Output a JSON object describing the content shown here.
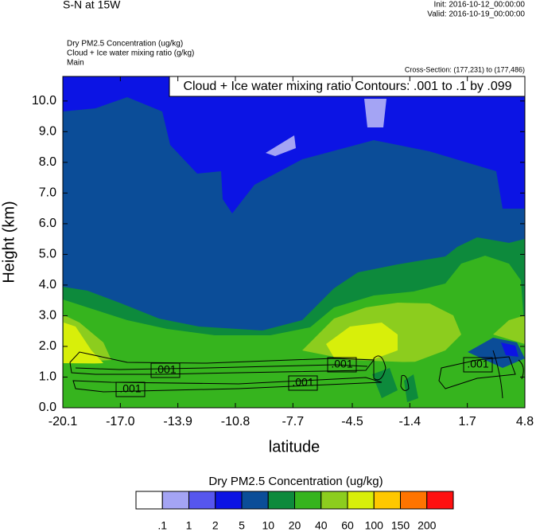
{
  "chart_data": {
    "type": "contour",
    "title": "S-N at 15W",
    "init": "Init: 2016-10-12_00:00:00",
    "valid": "Valid: 2016-10-19_00:00:00",
    "field_names": [
      "Dry PM2.5 Concentration   (ug/kg)",
      "Cloud + Ice water mixing ratio   (g/kg)",
      "Main"
    ],
    "cross_section": "Cross-Section: (177,231) to (177,486)",
    "contour_info": "Cloud + Ice water mixing ratio Contours: .001 to .1 by .099",
    "contour_labels": [
      ".001",
      ".001",
      ".001",
      ".001",
      ".001"
    ],
    "xlabel": "latitude",
    "ylabel": "Height (km)",
    "xlim": [
      -20.1,
      4.8
    ],
    "xticks": [
      -20.1,
      {
        "value": -17,
        "label": "-17.0"
      },
      -13.9,
      -10.8,
      -7.7,
      -4.5,
      -1.4,
      1.7,
      4.8
    ],
    "ylim": [
      0,
      10.8
    ],
    "yticks": [
      {
        "value": 0,
        "label": "0.0"
      },
      {
        "value": 1,
        "label": "1.0"
      },
      {
        "value": 2,
        "label": "2.0"
      },
      {
        "value": 3,
        "label": "3.0"
      },
      {
        "value": 4,
        "label": "4.0"
      },
      {
        "value": 5,
        "label": "5.0"
      },
      {
        "value": 6,
        "label": "6.0"
      },
      {
        "value": 7,
        "label": "7.0"
      },
      {
        "value": 8,
        "label": "8.0"
      },
      {
        "value": 9,
        "label": "9.0"
      },
      {
        "value": 10,
        "label": "10.0"
      }
    ],
    "colorbar": {
      "title": "Dry PM2.5 Concentration  (ug/kg)",
      "levels": [
        {
          "value": 0.1,
          "label": ".1"
        },
        1,
        2,
        5,
        10,
        20,
        40,
        60,
        100,
        150,
        200
      ],
      "colors": [
        "#ffffff",
        "#a4a4f4",
        "#5656ee",
        "#0c14e4",
        "#0b4d98",
        "#0d8a3c",
        "#36b41e",
        "#8ccd1e",
        "#d8ef0a",
        "#ffc800",
        "#ff7400",
        "#ff1010"
      ]
    }
  }
}
